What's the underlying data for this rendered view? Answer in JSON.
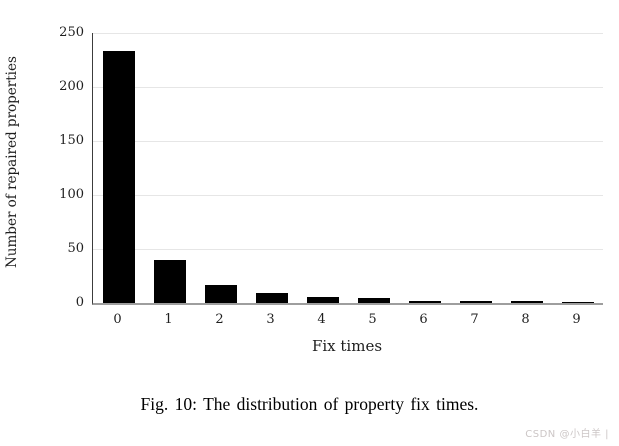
{
  "caption": "Fig. 10: The distribution of property fix times.",
  "watermark": "CSDN @小白羊 |",
  "chart_data": {
    "type": "bar",
    "title": "",
    "categories": [
      "0",
      "1",
      "2",
      "3",
      "4",
      "5",
      "6",
      "7",
      "8",
      "9"
    ],
    "values": [
      233,
      40,
      17,
      9,
      6,
      5,
      2,
      2,
      2,
      1
    ],
    "xlabel": "Fix times",
    "ylabel": "Number of repaired properties",
    "ylim": [
      0,
      250
    ],
    "yticks": [
      0,
      50,
      100,
      150,
      200,
      250
    ],
    "grid": true,
    "legend_position": "none",
    "bar_color": "#000000",
    "gridline_color": "#e6e6e6",
    "baseline_color": "#9e9e9e",
    "axis_line_color": "#3c3c3c"
  }
}
